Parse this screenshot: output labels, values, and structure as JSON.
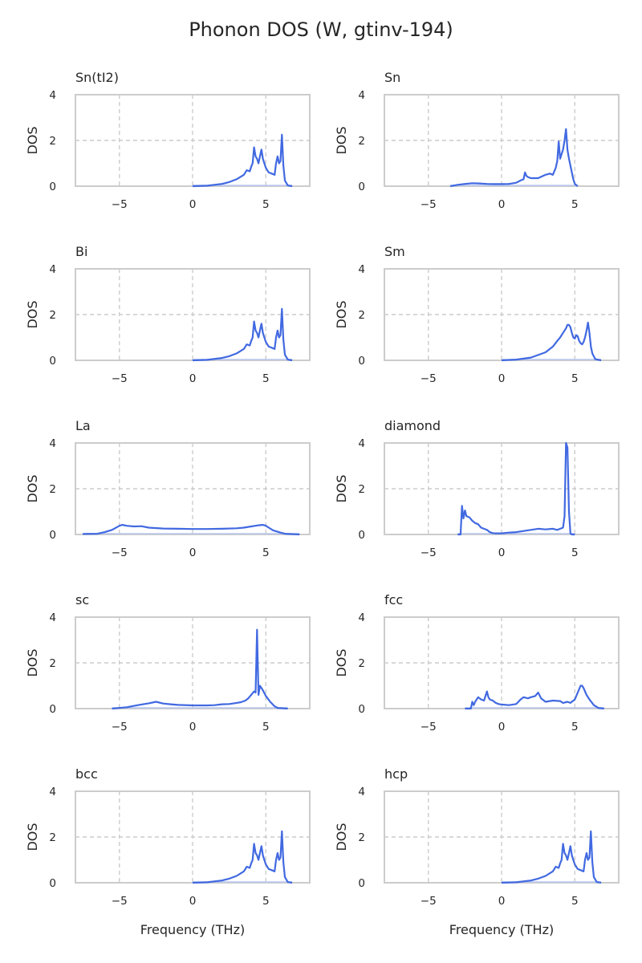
{
  "chart_data": {
    "type": "line",
    "title": "Phonon DOS (W, gtinv-194)",
    "xlabel": "Frequency (THz)",
    "ylabel": "DOS",
    "xlim": [
      -8,
      8
    ],
    "ylim": [
      0,
      4
    ],
    "xticks": [
      -5,
      0,
      5
    ],
    "yticks": [
      0,
      2,
      4
    ],
    "grid": true,
    "line_color": "#4169e1",
    "panels": [
      {
        "title": "Sn(tI2)",
        "x": [
          0,
          1,
          2,
          2.5,
          3,
          3.5,
          3.7,
          3.9,
          4.0,
          4.1,
          4.2,
          4.3,
          4.4,
          4.5,
          4.6,
          4.7,
          4.8,
          4.9,
          5.0,
          5.2,
          5.4,
          5.6,
          5.7,
          5.8,
          5.9,
          6.0,
          6.1,
          6.2,
          6.3,
          6.5,
          6.8
        ],
        "y": [
          0,
          0.02,
          0.1,
          0.18,
          0.3,
          0.5,
          0.7,
          0.65,
          0.85,
          1.0,
          1.7,
          1.3,
          1.2,
          1.0,
          1.3,
          1.6,
          1.2,
          1.0,
          0.8,
          0.6,
          0.55,
          0.5,
          1.0,
          1.3,
          1.0,
          1.1,
          2.25,
          0.9,
          0.25,
          0.03,
          0.0
        ]
      },
      {
        "title": "Sn",
        "x": [
          -3.5,
          -3,
          -2.5,
          -2,
          -1.5,
          -1,
          -0.5,
          0,
          0.5,
          1.0,
          1.3,
          1.5,
          1.6,
          1.7,
          1.8,
          2.0,
          2.5,
          3.0,
          3.3,
          3.5,
          3.7,
          3.8,
          3.9,
          4.0,
          4.1,
          4.2,
          4.3,
          4.4,
          4.5,
          4.6,
          4.7,
          4.8,
          4.9,
          5.0,
          5.2
        ],
        "y": [
          0.0,
          0.06,
          0.1,
          0.13,
          0.12,
          0.1,
          0.09,
          0.09,
          0.1,
          0.15,
          0.25,
          0.3,
          0.6,
          0.45,
          0.4,
          0.35,
          0.35,
          0.5,
          0.55,
          0.5,
          0.8,
          1.1,
          1.95,
          1.2,
          1.4,
          1.6,
          2.0,
          2.5,
          1.6,
          1.2,
          0.9,
          0.6,
          0.3,
          0.1,
          0.0
        ]
      },
      {
        "title": "Bi",
        "x": [
          0,
          1,
          2,
          2.5,
          3,
          3.5,
          3.7,
          3.9,
          4.0,
          4.1,
          4.2,
          4.3,
          4.4,
          4.5,
          4.6,
          4.7,
          4.8,
          4.9,
          5.0,
          5.2,
          5.4,
          5.6,
          5.7,
          5.8,
          5.9,
          6.0,
          6.1,
          6.2,
          6.3,
          6.5,
          6.8
        ],
        "y": [
          0,
          0.02,
          0.1,
          0.18,
          0.3,
          0.5,
          0.7,
          0.65,
          0.85,
          1.0,
          1.7,
          1.3,
          1.2,
          1.0,
          1.3,
          1.6,
          1.2,
          1.0,
          0.8,
          0.6,
          0.55,
          0.5,
          1.0,
          1.3,
          1.0,
          1.1,
          2.25,
          0.9,
          0.25,
          0.03,
          0.0
        ]
      },
      {
        "title": "Sm",
        "x": [
          0,
          1,
          2,
          3,
          3.5,
          3.8,
          4.0,
          4.2,
          4.4,
          4.5,
          4.6,
          4.7,
          4.8,
          4.9,
          5.0,
          5.1,
          5.2,
          5.3,
          5.4,
          5.5,
          5.6,
          5.7,
          5.8,
          5.9,
          6.0,
          6.1,
          6.2,
          6.4,
          6.8
        ],
        "y": [
          0,
          0.03,
          0.12,
          0.35,
          0.6,
          0.85,
          1.0,
          1.2,
          1.4,
          1.55,
          1.55,
          1.45,
          1.2,
          1.0,
          0.95,
          1.1,
          1.05,
          0.85,
          0.75,
          0.7,
          0.8,
          1.0,
          1.3,
          1.65,
          1.2,
          0.6,
          0.3,
          0.05,
          0.0
        ]
      },
      {
        "title": "La",
        "x": [
          -7.5,
          -6.5,
          -6,
          -5.5,
          -5.0,
          -4.8,
          -4.5,
          -4.0,
          -3.5,
          -3.0,
          -2.0,
          -1.0,
          0,
          1.0,
          2.0,
          3.0,
          3.5,
          4.0,
          4.5,
          4.8,
          5.0,
          5.2,
          5.5,
          5.8,
          6.0,
          6.3,
          7.3
        ],
        "y": [
          0.02,
          0.03,
          0.1,
          0.2,
          0.38,
          0.42,
          0.38,
          0.35,
          0.36,
          0.3,
          0.26,
          0.25,
          0.24,
          0.24,
          0.25,
          0.27,
          0.3,
          0.35,
          0.4,
          0.42,
          0.38,
          0.3,
          0.18,
          0.12,
          0.08,
          0.03,
          0.0
        ]
      },
      {
        "title": "diamond",
        "x": [
          -3.0,
          -2.8,
          -2.7,
          -2.6,
          -2.5,
          -2.4,
          -2.2,
          -2.0,
          -1.8,
          -1.6,
          -1.4,
          -1.2,
          -1.0,
          -0.8,
          -0.6,
          -0.4,
          0,
          0.5,
          1.0,
          1.5,
          2.0,
          2.5,
          3.0,
          3.5,
          3.8,
          4.0,
          4.2,
          4.3,
          4.4,
          4.5,
          4.6,
          4.7,
          4.8,
          5.0
        ],
        "y": [
          0.0,
          0.0,
          1.25,
          0.7,
          1.05,
          0.8,
          0.75,
          0.6,
          0.5,
          0.45,
          0.3,
          0.25,
          0.2,
          0.1,
          0.06,
          0.05,
          0.05,
          0.08,
          0.1,
          0.15,
          0.2,
          0.25,
          0.22,
          0.25,
          0.2,
          0.25,
          0.3,
          0.8,
          4.0,
          3.8,
          1.0,
          0.05,
          0.0,
          0.0
        ]
      },
      {
        "title": "sc",
        "x": [
          -5.5,
          -4.5,
          -4.0,
          -3.5,
          -3.0,
          -2.5,
          -2.0,
          -1.5,
          -1.0,
          0,
          1.0,
          1.5,
          2.0,
          2.5,
          3.0,
          3.3,
          3.6,
          3.8,
          4.0,
          4.2,
          4.3,
          4.4,
          4.5,
          4.6,
          4.7,
          4.8,
          5.0,
          5.3,
          5.6,
          5.8,
          6.5
        ],
        "y": [
          0.0,
          0.06,
          0.12,
          0.18,
          0.23,
          0.3,
          0.22,
          0.19,
          0.16,
          0.14,
          0.14,
          0.15,
          0.19,
          0.2,
          0.25,
          0.28,
          0.35,
          0.45,
          0.6,
          0.75,
          0.7,
          3.45,
          0.6,
          1.0,
          0.9,
          0.8,
          0.55,
          0.3,
          0.1,
          0.03,
          0.0
        ]
      },
      {
        "title": "fcc",
        "x": [
          -2.5,
          -2.1,
          -2.0,
          -1.9,
          -1.8,
          -1.6,
          -1.4,
          -1.2,
          -1.0,
          -0.9,
          -0.8,
          -0.6,
          -0.4,
          -0.2,
          0,
          0.5,
          1.0,
          1.3,
          1.5,
          1.8,
          2.0,
          2.3,
          2.5,
          2.7,
          3.0,
          3.5,
          4.0,
          4.2,
          4.5,
          4.7,
          5.0,
          5.2,
          5.4,
          5.5,
          5.6,
          5.8,
          6.0,
          6.3,
          6.6,
          7.0
        ],
        "y": [
          0.0,
          0.0,
          0.3,
          0.15,
          0.3,
          0.5,
          0.4,
          0.35,
          0.75,
          0.5,
          0.4,
          0.35,
          0.25,
          0.2,
          0.18,
          0.15,
          0.2,
          0.4,
          0.5,
          0.45,
          0.5,
          0.55,
          0.7,
          0.45,
          0.3,
          0.35,
          0.33,
          0.25,
          0.3,
          0.25,
          0.4,
          0.7,
          1.0,
          1.0,
          0.9,
          0.6,
          0.4,
          0.15,
          0.03,
          0.0
        ]
      },
      {
        "title": "bcc",
        "x": [
          0,
          1,
          2,
          2.5,
          3,
          3.5,
          3.7,
          3.9,
          4.0,
          4.1,
          4.2,
          4.3,
          4.4,
          4.5,
          4.6,
          4.7,
          4.8,
          4.9,
          5.0,
          5.2,
          5.4,
          5.6,
          5.7,
          5.8,
          5.9,
          6.0,
          6.1,
          6.2,
          6.3,
          6.5,
          6.8
        ],
        "y": [
          0,
          0.02,
          0.1,
          0.18,
          0.3,
          0.5,
          0.7,
          0.65,
          0.85,
          1.0,
          1.7,
          1.3,
          1.2,
          1.0,
          1.3,
          1.6,
          1.2,
          1.0,
          0.8,
          0.6,
          0.55,
          0.5,
          1.0,
          1.3,
          1.0,
          1.1,
          2.25,
          0.9,
          0.25,
          0.03,
          0.0
        ]
      },
      {
        "title": "hcp",
        "x": [
          0,
          1,
          2,
          2.5,
          3,
          3.5,
          3.7,
          3.9,
          4.0,
          4.1,
          4.2,
          4.3,
          4.4,
          4.5,
          4.6,
          4.7,
          4.8,
          4.9,
          5.0,
          5.2,
          5.4,
          5.6,
          5.7,
          5.8,
          5.9,
          6.0,
          6.1,
          6.2,
          6.3,
          6.5,
          6.8
        ],
        "y": [
          0,
          0.02,
          0.1,
          0.18,
          0.3,
          0.5,
          0.7,
          0.65,
          0.85,
          1.0,
          1.7,
          1.3,
          1.2,
          1.0,
          1.3,
          1.6,
          1.2,
          1.0,
          0.8,
          0.6,
          0.55,
          0.5,
          1.0,
          1.3,
          1.0,
          1.1,
          2.25,
          0.9,
          0.25,
          0.03,
          0.0
        ]
      }
    ]
  }
}
